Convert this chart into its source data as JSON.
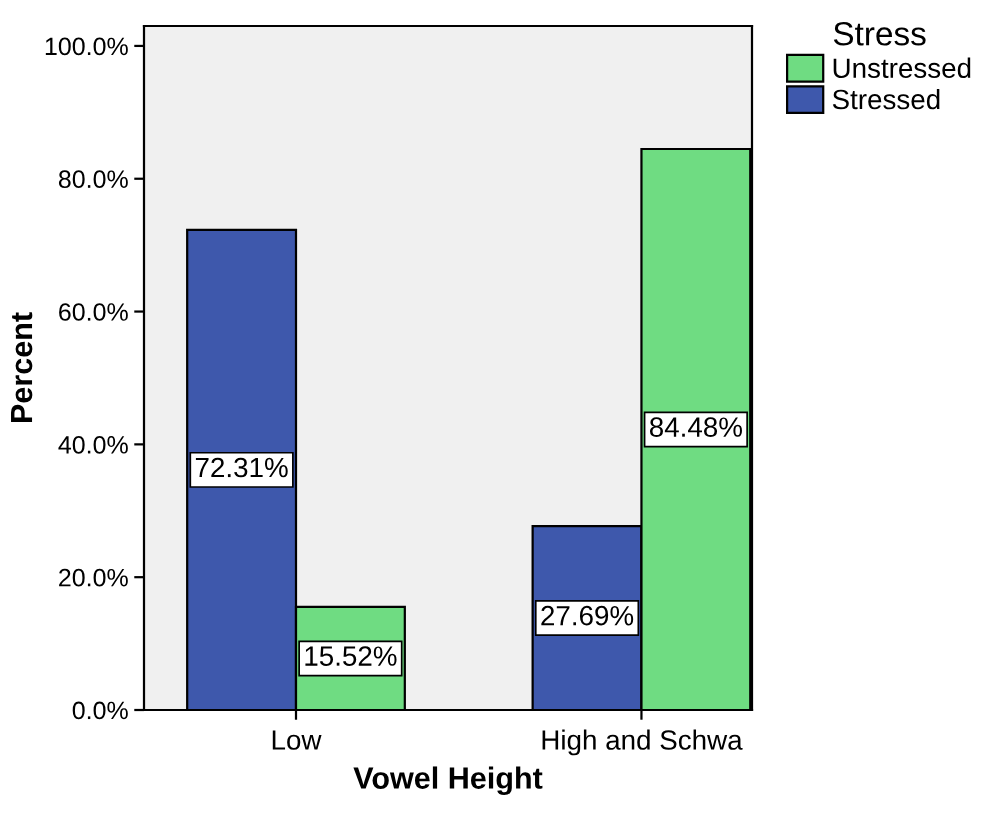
{
  "chart_data": {
    "type": "bar",
    "xlabel": "Vowel Height",
    "ylabel": "Percent",
    "legend_title": "Stress",
    "categories": [
      "Low",
      "High and Schwa"
    ],
    "series": [
      {
        "name": "Stressed",
        "color": "#3e58ac",
        "values": [
          72.31,
          27.69
        ],
        "value_labels": [
          "72.31%",
          "27.69%"
        ]
      },
      {
        "name": "Unstressed",
        "color": "#6fdc82",
        "values": [
          15.52,
          84.48
        ],
        "value_labels": [
          "15.52%",
          "84.48%"
        ]
      }
    ],
    "ylim": [
      0,
      103
    ],
    "yticks": [
      {
        "value": 0,
        "label": "0.0%"
      },
      {
        "value": 20,
        "label": "20.0%"
      },
      {
        "value": 40,
        "label": "40.0%"
      },
      {
        "value": 60,
        "label": "60.0%"
      },
      {
        "value": 80,
        "label": "80.0%"
      },
      {
        "value": 100,
        "label": "100.0%"
      }
    ],
    "grid": false,
    "legend": "top right"
  }
}
